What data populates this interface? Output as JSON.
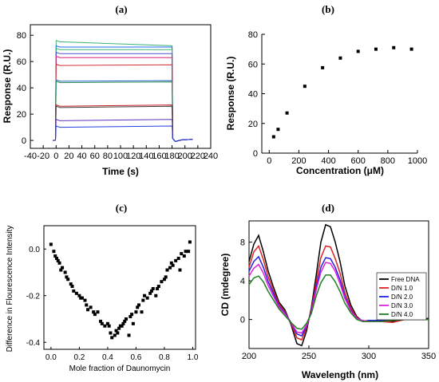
{
  "chart_data": [
    {
      "id": "a",
      "type": "line",
      "title": "(a)",
      "xlabel": "Time (s)",
      "ylabel": "Response (R.U.)",
      "xlim": [
        -40,
        240
      ],
      "ylim": [
        -6,
        88
      ],
      "xticks": [
        -40,
        -20,
        0,
        20,
        40,
        60,
        80,
        100,
        120,
        140,
        160,
        180,
        200,
        220,
        240
      ],
      "yticks": [
        0,
        20,
        40,
        60,
        80
      ],
      "injection": {
        "start": 0,
        "end": 180
      },
      "series": [
        {
          "plateau": 76,
          "end": 72,
          "color": "#3cb371"
        },
        {
          "plateau": 72,
          "end": 71,
          "color": "#1e6eff"
        },
        {
          "plateau": 70,
          "end": 69,
          "color": "#3cb371"
        },
        {
          "plateau": 67,
          "end": 66,
          "color": "#5050d0"
        },
        {
          "plateau": 64,
          "end": 63,
          "color": "#e0207a"
        },
        {
          "plateau": 58,
          "end": 57.5,
          "color": "#d03030"
        },
        {
          "plateau": 46,
          "end": 45.5,
          "color": "#2060c0"
        },
        {
          "plateau": 45,
          "end": 44.5,
          "color": "#309050"
        },
        {
          "plateau": 27,
          "end": 27,
          "color": "#c02020"
        },
        {
          "plateau": 26,
          "end": 26,
          "color": "#404040"
        },
        {
          "plateau": 16,
          "end": 16,
          "color": "#6030c0"
        },
        {
          "plateau": 11,
          "end": 11,
          "color": "#2040e0"
        }
      ]
    },
    {
      "id": "b",
      "type": "scatter",
      "title": "(b)",
      "xlabel": "Concentration (μM)",
      "ylabel": "Response (R.U.)",
      "xlim": [
        -50,
        1000
      ],
      "ylim": [
        0,
        80
      ],
      "xticks": [
        0,
        200,
        400,
        600,
        800,
        1000
      ],
      "yticks": [
        0,
        20,
        40,
        60,
        80
      ],
      "x": [
        30,
        60,
        120,
        240,
        360,
        480,
        600,
        720,
        840,
        960
      ],
      "y": [
        11,
        16,
        27,
        45,
        57.5,
        64,
        68.5,
        70,
        71,
        70
      ]
    },
    {
      "id": "c",
      "type": "scatter",
      "title": "(c)",
      "xlabel": "Mole fraction of Daunomycin",
      "ylabel": "Difference in Flourescence Intensity",
      "xlim": [
        -0.05,
        1.02
      ],
      "ylim": [
        -0.43,
        0.1
      ],
      "xticks": [
        0.0,
        0.2,
        0.4,
        0.6,
        0.8,
        1.0
      ],
      "yticks": [
        0.0,
        -0.2,
        -0.4
      ],
      "x": [
        0.0,
        0.02,
        0.03,
        0.04,
        0.05,
        0.06,
        0.07,
        0.08,
        0.1,
        0.11,
        0.12,
        0.14,
        0.15,
        0.16,
        0.18,
        0.2,
        0.21,
        0.22,
        0.24,
        0.25,
        0.26,
        0.28,
        0.3,
        0.31,
        0.33,
        0.35,
        0.36,
        0.38,
        0.4,
        0.41,
        0.42,
        0.43,
        0.45,
        0.46,
        0.47,
        0.48,
        0.49,
        0.5,
        0.51,
        0.52,
        0.53,
        0.55,
        0.56,
        0.57,
        0.58,
        0.6,
        0.61,
        0.62,
        0.64,
        0.65,
        0.66,
        0.68,
        0.7,
        0.71,
        0.72,
        0.74,
        0.75,
        0.76,
        0.78,
        0.8,
        0.81,
        0.82,
        0.84,
        0.85,
        0.86,
        0.88,
        0.9,
        0.91,
        0.92,
        0.94,
        0.95,
        0.97,
        0.98
      ],
      "y": [
        0.02,
        -0.01,
        -0.03,
        -0.04,
        -0.05,
        -0.06,
        -0.09,
        -0.08,
        -0.1,
        -0.12,
        -0.13,
        -0.15,
        -0.16,
        -0.18,
        -0.19,
        -0.2,
        -0.21,
        -0.21,
        -0.22,
        -0.24,
        -0.26,
        -0.25,
        -0.27,
        -0.28,
        -0.27,
        -0.31,
        -0.32,
        -0.33,
        -0.32,
        -0.33,
        -0.36,
        -0.38,
        -0.37,
        -0.35,
        -0.36,
        -0.34,
        -0.33,
        -0.33,
        -0.32,
        -0.31,
        -0.3,
        -0.37,
        -0.29,
        -0.28,
        -0.32,
        -0.27,
        -0.25,
        -0.24,
        -0.27,
        -0.22,
        -0.2,
        -0.21,
        -0.19,
        -0.18,
        -0.17,
        -0.2,
        -0.17,
        -0.16,
        -0.14,
        -0.13,
        -0.12,
        -0.09,
        -0.08,
        -0.06,
        -0.07,
        -0.05,
        -0.04,
        -0.09,
        -0.02,
        -0.03,
        -0.01,
        -0.01,
        0.03
      ]
    },
    {
      "id": "d",
      "type": "line",
      "title": "(d)",
      "xlabel": "Wavelength (nm)",
      "ylabel": "CD (mdegree)",
      "xlim": [
        200,
        350
      ],
      "ylim": [
        -3,
        10.2
      ],
      "xticks": [
        200,
        250,
        300,
        350
      ],
      "yticks": [
        0,
        4,
        8
      ],
      "legend_position": "right",
      "x": [
        200,
        204,
        208,
        212,
        216,
        220,
        225,
        230,
        235,
        240,
        244,
        248,
        252,
        256,
        260,
        264,
        268,
        272,
        276,
        280,
        285,
        290,
        295,
        300,
        310,
        320,
        330,
        340,
        350
      ],
      "series": [
        {
          "name": "Free DNA",
          "color": "#000000",
          "values": [
            6.0,
            7.8,
            8.7,
            7.0,
            5.0,
            3.5,
            1.8,
            1.0,
            -0.5,
            -2.5,
            -2.7,
            -1.2,
            1.2,
            4.5,
            8.0,
            9.8,
            9.6,
            8.0,
            6.0,
            3.5,
            1.5,
            0.3,
            -0.2,
            -0.1,
            -0.2,
            -0.2,
            0.1,
            0.1,
            0.1
          ]
        },
        {
          "name": "D/N 1.0",
          "color": "#e02020",
          "values": [
            5.4,
            7.0,
            7.6,
            6.2,
            4.4,
            3.1,
            1.6,
            0.8,
            -0.4,
            -1.9,
            -2.1,
            -0.9,
            1.0,
            3.8,
            6.4,
            7.6,
            7.5,
            6.3,
            4.8,
            2.8,
            1.2,
            0.2,
            -0.2,
            -0.2,
            -0.2,
            -0.3,
            0.0,
            0.0,
            0.0
          ]
        },
        {
          "name": "D/N 2.0",
          "color": "#2020e0",
          "values": [
            5.0,
            6.0,
            6.5,
            5.4,
            3.9,
            2.8,
            1.4,
            0.7,
            -0.3,
            -1.5,
            -1.7,
            -0.7,
            0.8,
            3.3,
            5.4,
            6.4,
            6.3,
            5.4,
            4.1,
            2.4,
            1.0,
            0.1,
            -0.2,
            -0.1,
            -0.1,
            -0.1,
            0.0,
            0.0,
            0.0
          ]
        },
        {
          "name": "D/N 3.0",
          "color": "#e020e0",
          "values": [
            4.5,
            5.3,
            5.7,
            4.8,
            3.5,
            2.5,
            1.3,
            0.6,
            -0.3,
            -1.3,
            -1.4,
            -0.6,
            0.7,
            3.0,
            4.9,
            5.9,
            5.8,
            5.0,
            3.7,
            2.2,
            0.9,
            0.1,
            -0.1,
            -0.2,
            -0.2,
            -0.1,
            0.0,
            0.0,
            0.0
          ]
        },
        {
          "name": "D/N 4.0",
          "color": "#208020",
          "values": [
            3.6,
            4.3,
            4.5,
            3.9,
            2.9,
            2.1,
            1.1,
            0.4,
            -0.3,
            -0.9,
            -1.0,
            -0.4,
            0.6,
            2.4,
            3.8,
            4.6,
            4.6,
            3.9,
            2.9,
            1.7,
            0.7,
            0.0,
            -0.2,
            -0.2,
            -0.2,
            -0.1,
            0.0,
            0.0,
            0.0
          ]
        }
      ]
    }
  ]
}
